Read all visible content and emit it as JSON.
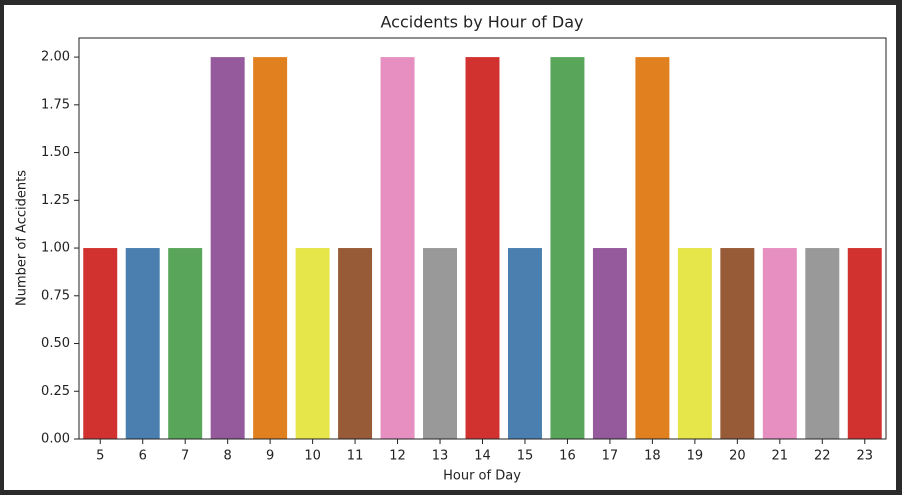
{
  "chart_data": {
    "type": "bar",
    "title": "Accidents by Hour of Day",
    "x_label": "Hour of Day",
    "y_label": "Number of Accidents",
    "categories": [
      "5",
      "6",
      "7",
      "8",
      "9",
      "10",
      "11",
      "12",
      "13",
      "14",
      "15",
      "16",
      "17",
      "18",
      "19",
      "20",
      "21",
      "22",
      "23"
    ],
    "values": [
      1,
      1,
      1,
      2,
      2,
      1,
      1,
      2,
      1,
      2,
      1,
      2,
      1,
      2,
      1,
      1,
      1,
      1,
      1
    ],
    "colors": [
      "#d1312f",
      "#4a7fb0",
      "#59a65a",
      "#945a9b",
      "#e0801f",
      "#e6e54a",
      "#975b37",
      "#e68fc0",
      "#999999",
      "#d1312f",
      "#4a7fb0",
      "#59a65a",
      "#945a9b",
      "#e0801f",
      "#e6e54a",
      "#975b37",
      "#e68fc0",
      "#999999",
      "#d1312f"
    ],
    "ylim": [
      0,
      2.1
    ],
    "yticks": [
      {
        "value": 0,
        "label": "0.00"
      },
      {
        "value": 0.25,
        "label": "0.25"
      },
      {
        "value": 0.5,
        "label": "0.50"
      },
      {
        "value": 0.75,
        "label": "0.75"
      },
      {
        "value": 1,
        "label": "1.00"
      },
      {
        "value": 1.25,
        "label": "1.25"
      },
      {
        "value": 1.5,
        "label": "1.50"
      },
      {
        "value": 1.75,
        "label": "1.75"
      },
      {
        "value": 2,
        "label": "2.00"
      }
    ]
  }
}
